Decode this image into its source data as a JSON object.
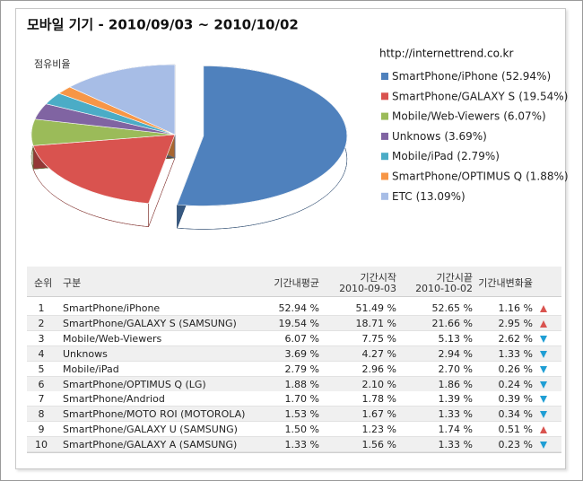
{
  "chart_data": {
    "type": "pie",
    "title": "모바일 기기 - 2010/09/03 ~ 2010/10/02",
    "subtitle": "점유비율",
    "source": "http://internettrend.co.kr",
    "categories": [
      "SmartPhone/iPhone",
      "SmartPhone/GALAXY S",
      "Mobile/Web-Viewers",
      "Unknows",
      "Mobile/iPad",
      "SmartPhone/OPTIMUS Q",
      "ETC"
    ],
    "values": [
      52.94,
      19.54,
      6.07,
      3.69,
      2.79,
      1.88,
      13.09
    ],
    "value_labels": [
      "(52.94%)",
      "(19.54%)",
      "(6.07%)",
      "(3.69%)",
      "(2.79%)",
      "(1.88%)",
      "(13.09%)"
    ],
    "colors": [
      "#4f81bd",
      "#d9534f",
      "#9bbb59",
      "#8064a2",
      "#4bacc6",
      "#f79646",
      "#a7bde6"
    ],
    "exploded": [
      0
    ]
  },
  "table": {
    "columns": [
      [
        "순위"
      ],
      [
        "구분"
      ],
      [
        "기간내평균"
      ],
      [
        "기간시작",
        "2010-09-03"
      ],
      [
        "기간시끝",
        "2010-10-02"
      ],
      [
        "기간내변화율"
      ]
    ],
    "rows": [
      {
        "cells": [
          "1",
          "SmartPhone/iPhone",
          "52.94 %",
          "51.49 %",
          "52.65 %",
          "1.16 %"
        ],
        "trend": "up"
      },
      {
        "cells": [
          "2",
          "SmartPhone/GALAXY S (SAMSUNG)",
          "19.54 %",
          "18.71 %",
          "21.66 %",
          "2.95 %"
        ],
        "trend": "up"
      },
      {
        "cells": [
          "3",
          "Mobile/Web-Viewers",
          "6.07 %",
          "7.75 %",
          "5.13 %",
          "2.62 %"
        ],
        "trend": "down"
      },
      {
        "cells": [
          "4",
          "Unknows",
          "3.69 %",
          "4.27 %",
          "2.94 %",
          "1.33 %"
        ],
        "trend": "down"
      },
      {
        "cells": [
          "5",
          "Mobile/iPad",
          "2.79 %",
          "2.96 %",
          "2.70 %",
          "0.26 %"
        ],
        "trend": "down"
      },
      {
        "cells": [
          "6",
          "SmartPhone/OPTIMUS Q (LG)",
          "1.88 %",
          "2.10 %",
          "1.86 %",
          "0.24 %"
        ],
        "trend": "down"
      },
      {
        "cells": [
          "7",
          "SmartPhone/Andriod",
          "1.70 %",
          "1.78 %",
          "1.39 %",
          "0.39 %"
        ],
        "trend": "down"
      },
      {
        "cells": [
          "8",
          "SmartPhone/MOTO ROI (MOTOROLA)",
          "1.53 %",
          "1.67 %",
          "1.33 %",
          "0.34 %"
        ],
        "trend": "down"
      },
      {
        "cells": [
          "9",
          "SmartPhone/GALAXY U (SAMSUNG)",
          "1.50 %",
          "1.23 %",
          "1.74 %",
          "0.51 %"
        ],
        "trend": "up"
      },
      {
        "cells": [
          "10",
          "SmartPhone/GALAXY A (SAMSUNG)",
          "1.33 %",
          "1.56 %",
          "1.33 %",
          "0.23 %"
        ],
        "trend": "down"
      }
    ]
  }
}
